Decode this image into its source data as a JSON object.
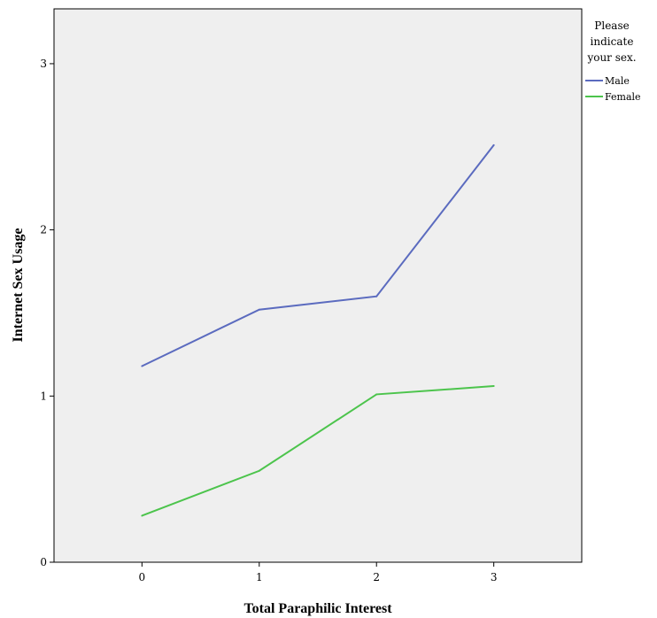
{
  "chart_data": {
    "type": "line",
    "xlabel": "Total Paraphilic Interest",
    "ylabel": "Internet Sex Usage",
    "categories": [
      "0",
      "1",
      "2",
      "3"
    ],
    "x": [
      0,
      1,
      2,
      3
    ],
    "xlim": [
      -0.75,
      3.75
    ],
    "ylim": [
      0,
      3.33
    ],
    "yticks": [
      0,
      1,
      2,
      3
    ],
    "grid": false,
    "legend": {
      "title_lines": [
        "Please",
        "indicate",
        "your sex."
      ],
      "placement": "right"
    },
    "series": [
      {
        "name": "Male",
        "color": "#5b6bbf",
        "values": [
          1.18,
          1.52,
          1.6,
          2.51
        ]
      },
      {
        "name": "Female",
        "color": "#4cc44c",
        "values": [
          0.28,
          0.55,
          1.01,
          1.06
        ]
      }
    ]
  },
  "colors": {
    "plot_background": "#efefef",
    "axis": "#000000"
  }
}
